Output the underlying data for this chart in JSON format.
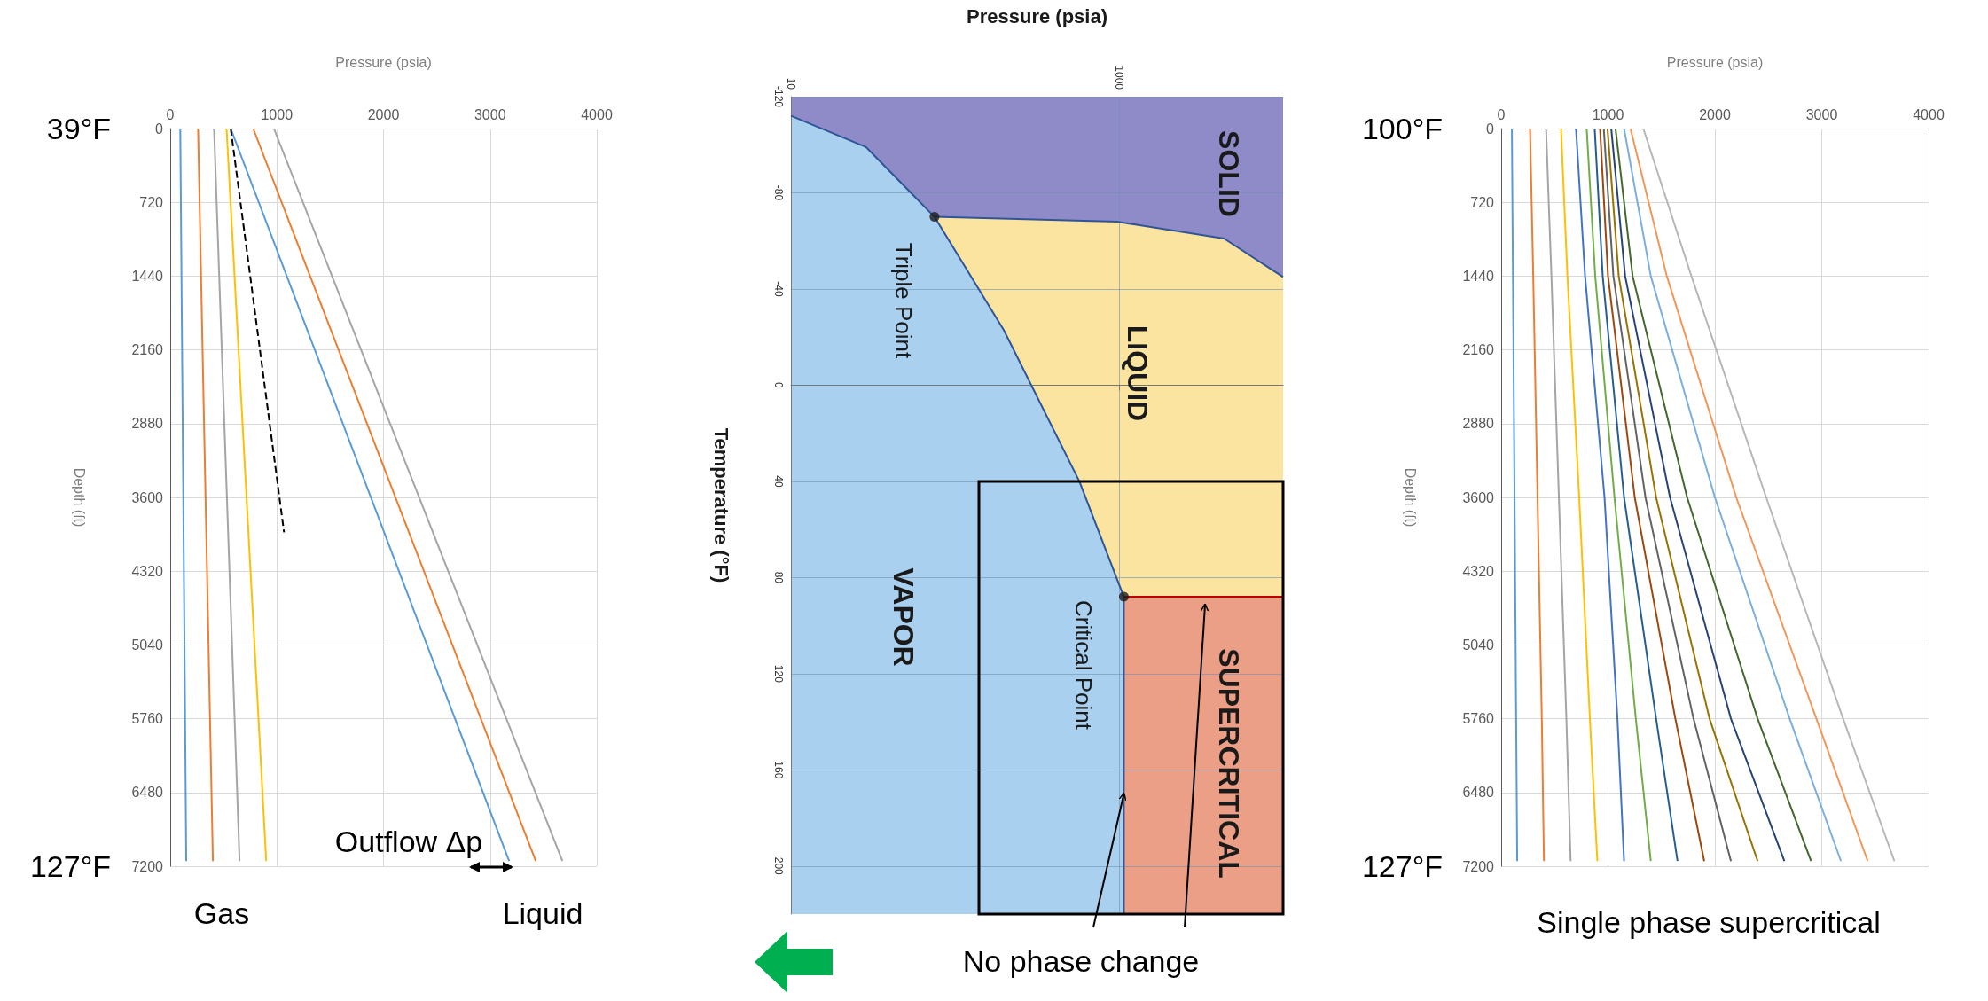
{
  "chart_data": [
    {
      "type": "line",
      "xlabel": "Pressure (psia)",
      "ylabel": "Depth (ft)",
      "xlim": [
        0,
        4000
      ],
      "xticks": [
        0,
        1000,
        2000,
        3000,
        4000
      ],
      "ylim": [
        7200,
        0
      ],
      "yticks": [
        0,
        720,
        1440,
        2160,
        2880,
        3600,
        4320,
        5040,
        5760,
        6480,
        7200
      ],
      "grid": true,
      "series": [
        {
          "color": "#5b9bd5",
          "x": [
            94,
            150
          ],
          "values": [
            0,
            7150
          ]
        },
        {
          "color": "#ed7d31",
          "x": [
            261,
            400
          ],
          "values": [
            0,
            7150
          ]
        },
        {
          "color": "#a5a5a5",
          "x": [
            411,
            650
          ],
          "values": [
            0,
            7150
          ]
        },
        {
          "color": "#ffc000",
          "x": [
            528,
            900
          ],
          "values": [
            0,
            7150
          ]
        },
        {
          "color": "#5b9bd5",
          "x": [
            567,
            3178
          ],
          "values": [
            0,
            7150
          ]
        },
        {
          "color": "#ed7d31",
          "x": [
            778,
            3428
          ],
          "values": [
            0,
            7150
          ]
        },
        {
          "color": "#a5a5a5",
          "x": [
            972,
            3678
          ],
          "values": [
            0,
            7150
          ]
        },
        {
          "color": "#000000",
          "line_style": "dashed",
          "x": [
            567,
            1067
          ],
          "values": [
            0,
            3940
          ]
        }
      ],
      "annotations": [
        "39°F",
        "127°F",
        "Outflow Δp",
        "Gas",
        "Liquid"
      ]
    },
    {
      "type": "line",
      "log": "x",
      "xlabel": "Pressure (psia)",
      "ylabel": "Temperature (°F)",
      "xlim": [
        10,
        10000
      ],
      "xticks": [
        10,
        1000
      ],
      "ylim": [
        220,
        -120
      ],
      "yticks": [
        -120,
        -80,
        -40,
        0,
        40,
        80,
        120,
        160,
        200
      ],
      "grid": true,
      "series": [
        {
          "color": "#2f5597",
          "x": [
            10,
            28.7,
            75,
            198,
            573,
            1070,
            1070
          ],
          "values": [
            -112,
            -99,
            -70,
            -23,
            40,
            88,
            220
          ]
        },
        {
          "color": "#2f5597",
          "x": [
            75,
            973,
            4365,
            10000
          ],
          "values": [
            -70,
            -68,
            -61,
            -45
          ]
        },
        {
          "color": "#c00000",
          "x": [
            1070,
            10000
          ],
          "values": [
            88,
            88
          ]
        },
        {
          "type": "scatter",
          "marker": "circle",
          "color": "#1a1a1a",
          "x": [
            75,
            1070
          ],
          "values": [
            -70,
            88
          ]
        }
      ],
      "bands": [
        {
          "axis": "y",
          "from": -120,
          "to": 220,
          "color": "#8f8bc8"
        }
      ],
      "annotations": [
        "SOLID",
        "LIQUID",
        "VAPOR",
        "SUPERCRITICAL",
        "Triple Point",
        "Critical Point",
        {
          "text": "No phase change",
          "x": 1070,
          "y": 170
        }
      ]
    },
    {
      "type": "line",
      "xlabel": "Pressure (psia)",
      "ylabel": "Depth (ft)",
      "xlim": [
        0,
        4000
      ],
      "xticks": [
        0,
        1000,
        2000,
        3000,
        4000
      ],
      "ylim": [
        7200,
        0
      ],
      "yticks": [
        0,
        720,
        1440,
        2160,
        2880,
        3600,
        4320,
        5040,
        5760,
        6480,
        7200
      ],
      "grid": true,
      "series": [
        {
          "color": "#5b9bd5",
          "x": [
            100,
            110,
            125,
            140,
            150
          ],
          "values": [
            0,
            1440,
            3600,
            5760,
            7150
          ]
        },
        {
          "color": "#ed7d31",
          "x": [
            270,
            300,
            340,
            380,
            400
          ],
          "values": [
            0,
            1440,
            3600,
            5760,
            7150
          ]
        },
        {
          "color": "#a5a5a5",
          "x": [
            420,
            470,
            540,
            610,
            650
          ],
          "values": [
            0,
            1440,
            3600,
            5760,
            7150
          ]
        },
        {
          "color": "#ffc000",
          "x": [
            560,
            620,
            730,
            830,
            900
          ],
          "values": [
            0,
            1440,
            3600,
            5760,
            7150
          ]
        },
        {
          "color": "#4472c4",
          "x": [
            700,
            785,
            967,
            1088,
            1150
          ],
          "values": [
            0,
            1440,
            3600,
            5760,
            7150
          ]
        },
        {
          "color": "#70ad47",
          "x": [
            800,
            880,
            1060,
            1260,
            1400
          ],
          "values": [
            0,
            1440,
            3600,
            5760,
            7150
          ]
        },
        {
          "color": "#255e91",
          "x": [
            875,
            950,
            1150,
            1450,
            1650
          ],
          "values": [
            0,
            1440,
            3600,
            5760,
            7150
          ]
        },
        {
          "color": "#9e480e",
          "x": [
            925,
            1000,
            1250,
            1630,
            1900
          ],
          "values": [
            0,
            1440,
            3600,
            5760,
            7150
          ]
        },
        {
          "color": "#636363",
          "x": [
            960,
            1050,
            1350,
            1800,
            2150
          ],
          "values": [
            0,
            1440,
            3600,
            5760,
            7150
          ]
        },
        {
          "color": "#997300",
          "x": [
            995,
            1100,
            1450,
            1950,
            2400
          ],
          "values": [
            0,
            1440,
            3600,
            5760,
            7150
          ]
        },
        {
          "color": "#264478",
          "x": [
            1030,
            1160,
            1580,
            2150,
            2650
          ],
          "values": [
            0,
            1440,
            3600,
            5760,
            7150
          ]
        },
        {
          "color": "#43682b",
          "x": [
            1070,
            1230,
            1740,
            2400,
            2900
          ],
          "values": [
            0,
            1440,
            3600,
            5760,
            7150
          ]
        },
        {
          "color": "#7cafdd",
          "x": [
            1150,
            1400,
            2000,
            2700,
            3180
          ],
          "values": [
            0,
            1440,
            3600,
            5760,
            7150
          ]
        },
        {
          "color": "#f1975a",
          "x": [
            1210,
            1550,
            2200,
            2950,
            3430
          ],
          "values": [
            0,
            1440,
            3600,
            5760,
            7150
          ]
        },
        {
          "color": "#b7b7b7",
          "x": [
            1330,
            1780,
            2480,
            3200,
            3680
          ],
          "values": [
            0,
            1440,
            3600,
            5760,
            7150
          ]
        }
      ],
      "annotations": [
        "100°F",
        "127°F",
        "Single phase supercritical"
      ]
    }
  ]
}
